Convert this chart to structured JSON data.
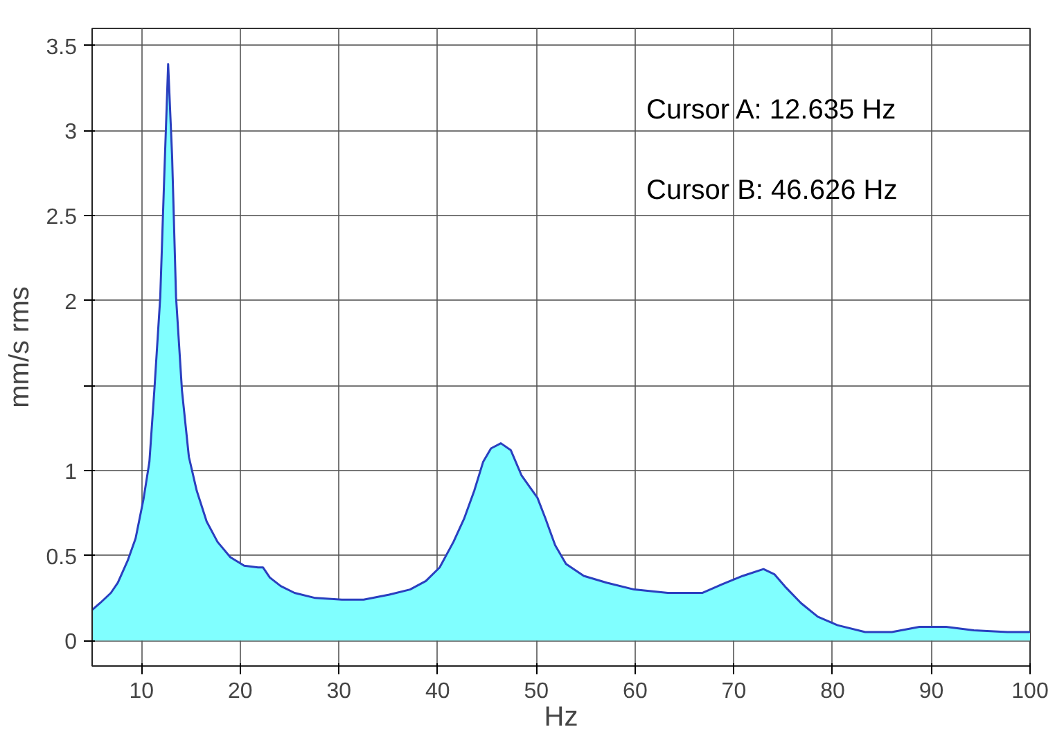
{
  "chart_data": {
    "type": "area",
    "xlabel": "Hz",
    "ylabel": "mm/s rms",
    "x": [
      5,
      5.8,
      6.9,
      7.6,
      8.6,
      9.4,
      10.2,
      10.8,
      11.3,
      11.9,
      12.3,
      12.7,
      13.1,
      13.5,
      14.1,
      14.8,
      15.6,
      16.6,
      17.7,
      19.0,
      20.4,
      21.8,
      22.3,
      23.0,
      24.1,
      25.5,
      27.6,
      30.3,
      32.5,
      35.1,
      37.2,
      38.8,
      40.2,
      41.6,
      42.7,
      43.7,
      44.6,
      45.4,
      46.4,
      47.4,
      48.5,
      50.1,
      50.9,
      51.9,
      53.0,
      54.8,
      57.1,
      59.9,
      63.3,
      66.8,
      68.8,
      70.9,
      73.0,
      74.1,
      75.3,
      76.8,
      78.5,
      80.5,
      83.3,
      86.0,
      88.8,
      91.5,
      94.3,
      97.7,
      100
    ],
    "series": [
      {
        "color": "#80ffff",
        "values": [
          0.18,
          0.22,
          0.28,
          0.34,
          0.47,
          0.6,
          0.83,
          1.05,
          1.47,
          2.02,
          2.72,
          3.39,
          2.85,
          2.02,
          1.47,
          1.08,
          0.88,
          0.7,
          0.58,
          0.49,
          0.44,
          0.43,
          0.43,
          0.37,
          0.32,
          0.28,
          0.25,
          0.24,
          0.24,
          0.27,
          0.3,
          0.35,
          0.43,
          0.58,
          0.72,
          0.88,
          1.05,
          1.13,
          1.16,
          1.12,
          0.97,
          0.84,
          0.72,
          0.56,
          0.45,
          0.38,
          0.34,
          0.3,
          0.28,
          0.28,
          0.33,
          0.38,
          0.42,
          0.39,
          0.31,
          0.22,
          0.14,
          0.09,
          0.05,
          0.05,
          0.08,
          0.08,
          0.06,
          0.05,
          0.05
        ]
      }
    ],
    "xlim": [
      5,
      100
    ],
    "ylim": [
      -0.15,
      3.6
    ],
    "xticks": [
      10,
      20,
      30,
      40,
      50,
      60,
      70,
      80,
      90,
      100
    ],
    "yticks": [
      0,
      0.5,
      1,
      {
        "value": 1.5,
        "label": null
      },
      2,
      2.5,
      3,
      3.5
    ],
    "grid": true,
    "annotations": [
      "Cursor A:   12.635 Hz",
      "Cursor B:   46.626 Hz"
    ]
  }
}
